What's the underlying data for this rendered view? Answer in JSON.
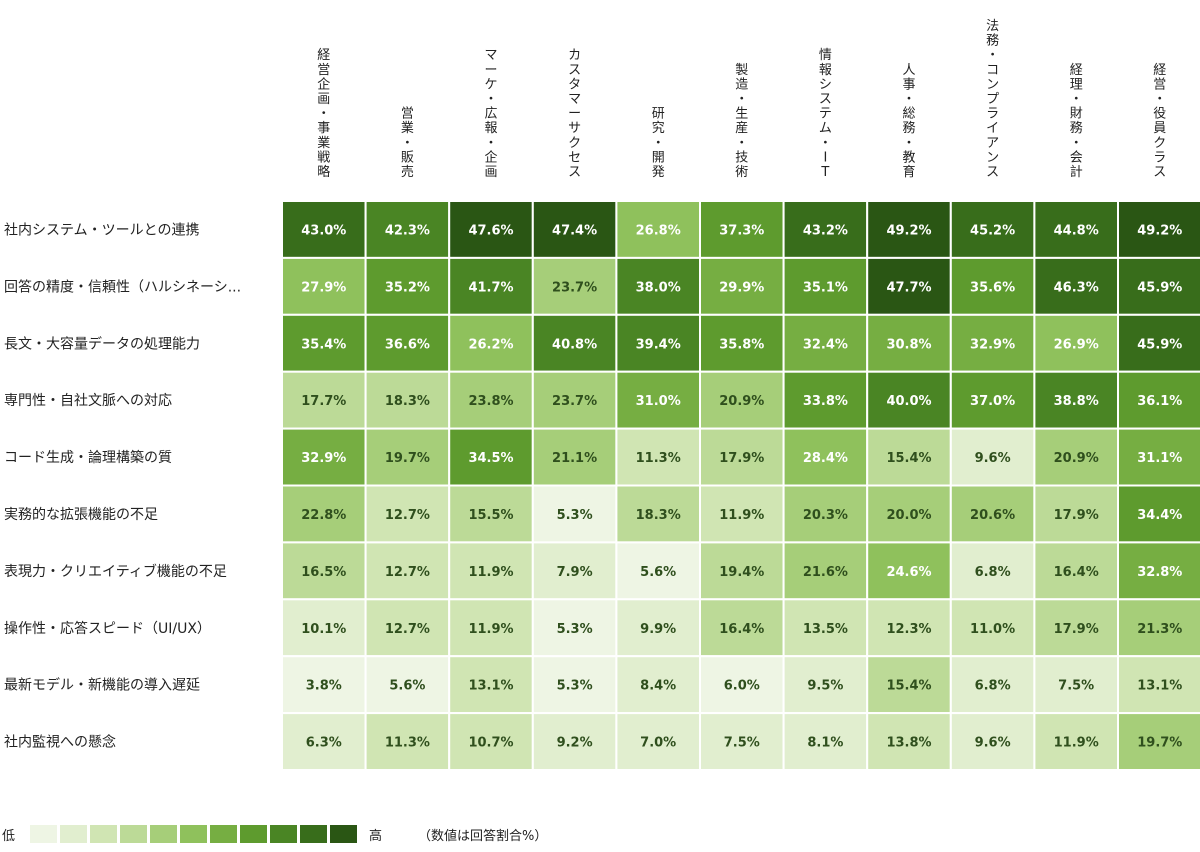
{
  "chart_data": {
    "type": "heatmap",
    "columns": [
      "経営企画・事業戦略",
      "営業・販売",
      "マーケ・広報・企画",
      "カスタマーサクセス",
      "研究・開発",
      "製造・生産・技術",
      "情報システム・IT",
      "人事・総務・教育",
      "法務・コンプライアンス",
      "経理・財務・会計",
      "経営・役員クラス"
    ],
    "rows": [
      "社内システム・ツールとの連携",
      "回答の精度・信頼性（ハルシネーシ...",
      "長文・大容量データの処理能力",
      "専門性・自社文脈への対応",
      "コード生成・論理構築の質",
      "実務的な拡張機能の不足",
      "表現力・クリエイティブ機能の不足",
      "操作性・応答スピード（UI/UX）",
      "最新モデル・新機能の導入遅延",
      "社内監視への懸念"
    ],
    "values": [
      [
        43.0,
        42.3,
        47.6,
        47.4,
        26.8,
        37.3,
        43.2,
        49.2,
        45.2,
        44.8,
        49.2
      ],
      [
        27.9,
        35.2,
        41.7,
        23.7,
        38.0,
        29.9,
        35.1,
        47.7,
        35.6,
        46.3,
        45.9
      ],
      [
        35.4,
        36.6,
        26.2,
        40.8,
        39.4,
        35.8,
        32.4,
        30.8,
        32.9,
        26.9,
        45.9
      ],
      [
        17.7,
        18.3,
        23.8,
        23.7,
        31.0,
        20.9,
        33.8,
        40.0,
        37.0,
        38.8,
        36.1
      ],
      [
        32.9,
        19.7,
        34.5,
        21.1,
        11.3,
        17.9,
        28.4,
        15.4,
        9.6,
        20.9,
        31.1
      ],
      [
        22.8,
        12.7,
        15.5,
        5.3,
        18.3,
        11.9,
        20.3,
        20.0,
        20.6,
        17.9,
        34.4
      ],
      [
        16.5,
        12.7,
        11.9,
        7.9,
        5.6,
        19.4,
        21.6,
        24.6,
        6.8,
        16.4,
        32.8
      ],
      [
        10.1,
        12.7,
        11.9,
        5.3,
        9.9,
        16.4,
        13.5,
        12.3,
        11.0,
        17.9,
        21.3
      ],
      [
        3.8,
        5.6,
        13.1,
        5.3,
        8.4,
        6.0,
        9.5,
        15.4,
        6.8,
        7.5,
        13.1
      ],
      [
        6.3,
        11.3,
        10.7,
        9.2,
        7.0,
        7.5,
        8.1,
        13.8,
        9.6,
        11.9,
        19.7
      ]
    ],
    "value_suffix": "%",
    "color_scale": [
      "#eef5e4",
      "#e1eecf",
      "#d0e5b3",
      "#bcda97",
      "#a6ce79",
      "#8fc15c",
      "#76ae42",
      "#5e9b2e",
      "#4a8524",
      "#386d1b",
      "#2a5614"
    ],
    "text_colors": {
      "light": "#ffffff",
      "dark": "#2f4f1d"
    },
    "legend": {
      "low_label": "低",
      "high_label": "高",
      "note": "（数値は回答割合%）",
      "position": "bottom-left"
    }
  }
}
